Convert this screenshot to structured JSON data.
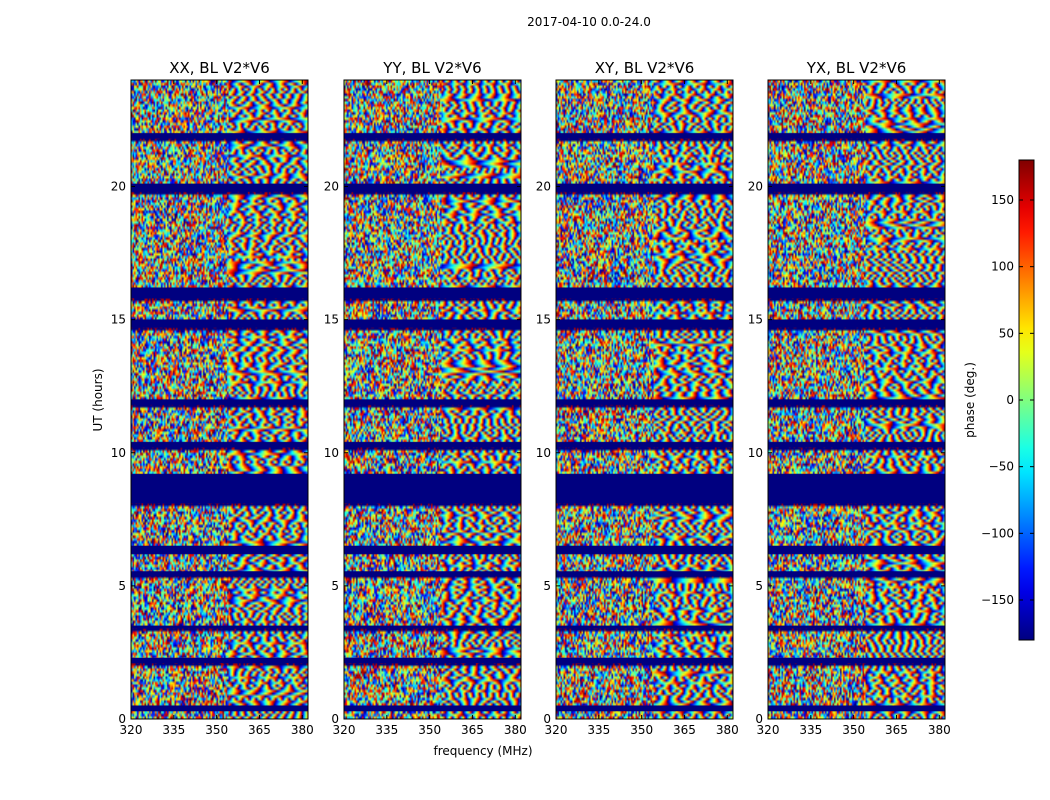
{
  "suptitle": "2017-04-10 0.0-24.0",
  "chart_data": {
    "type": "heatmap",
    "panels": [
      {
        "title": "XX, BL V2*V6"
      },
      {
        "title": "YY, BL V2*V6"
      },
      {
        "title": "XY, BL V2*V6"
      },
      {
        "title": "YX, BL V2*V6"
      }
    ],
    "xlabel": "frequency (MHz)",
    "ylabel": "UT (hours)",
    "x_range": [
      320,
      382
    ],
    "y_range": [
      0,
      24
    ],
    "x_ticks": [
      320,
      335,
      350,
      365,
      380
    ],
    "y_ticks": [
      0,
      5,
      10,
      15,
      20
    ],
    "colorbar": {
      "label": "phase (deg.)",
      "range": [
        -180,
        180
      ],
      "ticks": [
        -150,
        -100,
        -50,
        0,
        50,
        100,
        150
      ],
      "tick_labels": [
        "−150",
        "−100",
        "−50",
        "0",
        "50",
        "100",
        "150"
      ],
      "colormap": "jet"
    },
    "blanked_hours": [
      [
        0.3,
        0.5
      ],
      [
        2.1,
        2.3
      ],
      [
        3.4,
        3.5
      ],
      [
        5.35,
        5.55
      ],
      [
        6.2,
        6.5
      ],
      [
        8.1,
        9.2
      ],
      [
        10.2,
        10.4
      ],
      [
        11.8,
        12.0
      ],
      [
        14.7,
        15.0
      ],
      [
        15.8,
        16.2
      ],
      [
        19.8,
        20.1
      ],
      [
        21.8,
        22.0
      ]
    ]
  }
}
